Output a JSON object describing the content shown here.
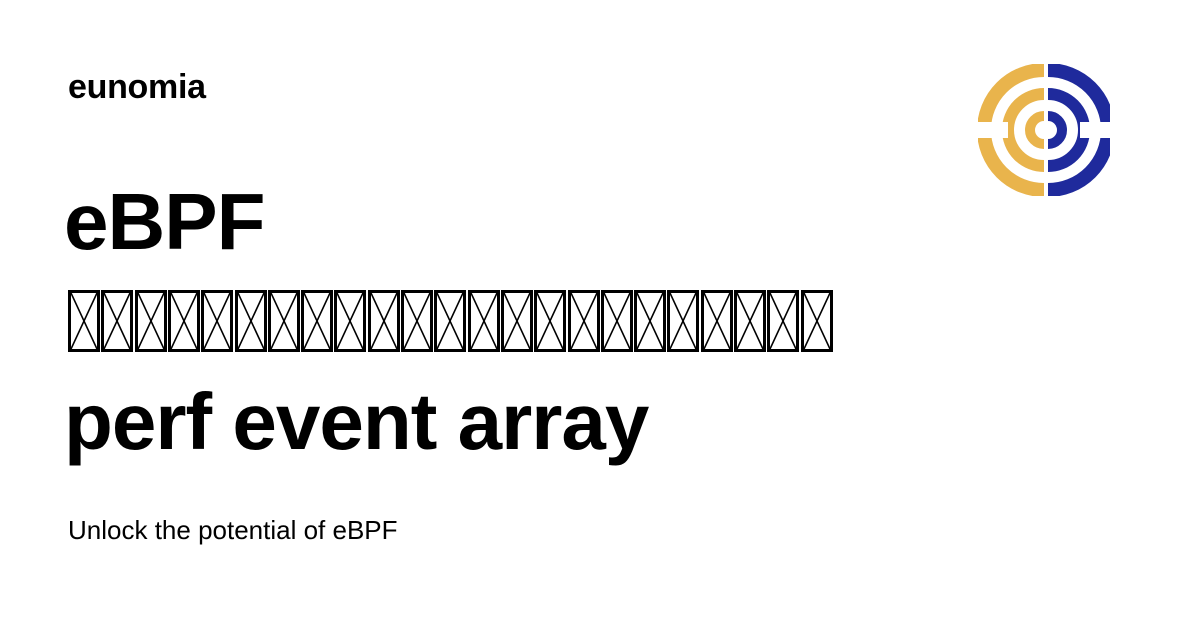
{
  "brand": {
    "name": "eunomia"
  },
  "title": {
    "line1": "eBPF",
    "line2_missing_glyph_count": 23,
    "line3": "perf event array"
  },
  "tagline": "Unlock the potential of eBPF",
  "logo": {
    "icon": "eunomia-logo-icon",
    "colors": {
      "left": "#E9B44C",
      "right": "#1F2A9C"
    }
  }
}
